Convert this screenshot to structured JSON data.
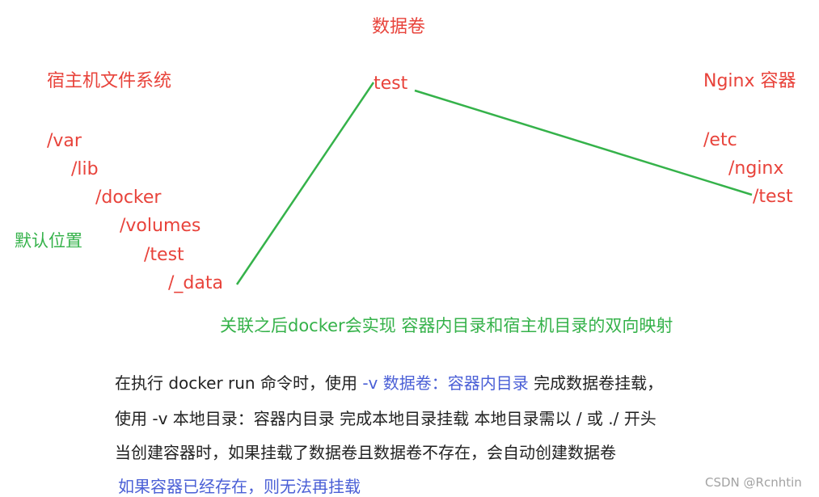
{
  "titles": {
    "volume": "数据卷",
    "host_fs": "宿主机文件系统",
    "nginx_container": "Nginx 容器"
  },
  "volume_name": "test",
  "host_path": [
    "/var",
    "/lib",
    "/docker",
    "/volumes",
    "/test",
    "/_data"
  ],
  "default_location_label": "默认位置",
  "container_path": [
    "/etc",
    "/nginx",
    "/test"
  ],
  "mapping_note": "关联之后docker会实现 容器内目录和宿主机目录的双向映射",
  "notes": {
    "line1_a": "在执行 docker run 命令时，使用 ",
    "line1_b": "-v 数据卷：容器内目录",
    "line1_c": " 完成数据卷挂载，",
    "line2": "使用 -v 本地目录：容器内目录 完成本地目录挂载 本地目录需以 / 或 ./ 开头",
    "line3": "当创建容器时，如果挂载了数据卷且数据卷不存在，会自动创建数据卷",
    "line4": "如果容器已经存在，则无法再挂载"
  },
  "watermark": "CSDN @Rcnhtin",
  "colors": {
    "red": "#e8433b",
    "green": "#35b24a",
    "blue": "#4a5fd6",
    "text": "#222222",
    "watermark": "#a3a3a3"
  }
}
